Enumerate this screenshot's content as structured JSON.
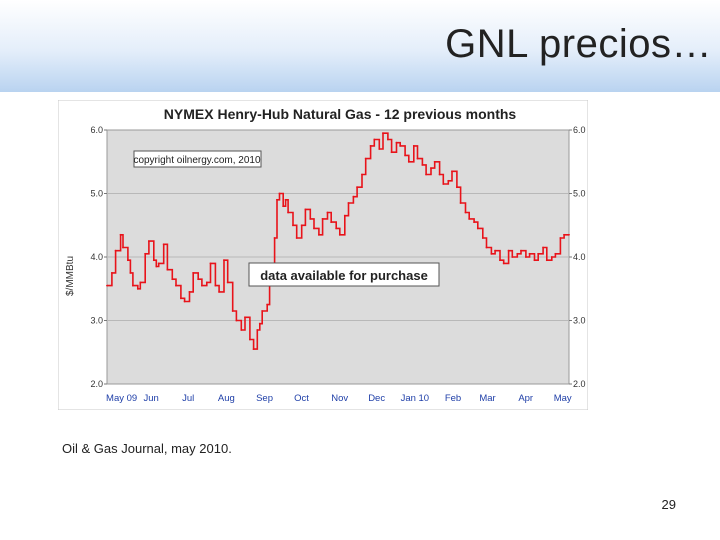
{
  "slide": {
    "title": "GNL  precios…",
    "caption": "Oil & Gas Journal, may 2010.",
    "page_number": "29"
  },
  "chart_data": {
    "type": "line",
    "title": "NYMEX Henry-Hub Natural Gas - 12 previous months",
    "ylabel": "$/MMBtu",
    "xlabel": "",
    "ylim": [
      2.0,
      6.0
    ],
    "yticks": [
      "2.0",
      "3.0",
      "4.0",
      "5.0",
      "6.0"
    ],
    "x_ticks": [
      "May 09",
      "Jun",
      "Jul",
      "Aug",
      "Sep",
      "Oct",
      "Nov",
      "Dec",
      "Jan 10",
      "Feb",
      "Mar",
      "Apr",
      "May"
    ],
    "grid": true,
    "copyright_note": "copyright oilnergy.com, 2010",
    "overlay_note": "data available for purchase",
    "series": [
      {
        "color": "#e8131a",
        "x": [
          "2009-05-01",
          "2009-05-05",
          "2009-05-08",
          "2009-05-12",
          "2009-05-14",
          "2009-05-18",
          "2009-05-20",
          "2009-05-22",
          "2009-05-26",
          "2009-05-28",
          "2009-06-01",
          "2009-06-04",
          "2009-06-08",
          "2009-06-10",
          "2009-06-12",
          "2009-06-16",
          "2009-06-19",
          "2009-06-23",
          "2009-06-26",
          "2009-06-30",
          "2009-07-03",
          "2009-07-07",
          "2009-07-10",
          "2009-07-14",
          "2009-07-17",
          "2009-07-21",
          "2009-07-24",
          "2009-07-28",
          "2009-07-31",
          "2009-08-04",
          "2009-08-07",
          "2009-08-11",
          "2009-08-14",
          "2009-08-18",
          "2009-08-21",
          "2009-08-25",
          "2009-08-28",
          "2009-08-31",
          "2009-09-02",
          "2009-09-04",
          "2009-09-08",
          "2009-09-10",
          "2009-09-14",
          "2009-09-16",
          "2009-09-18",
          "2009-09-21",
          "2009-09-23",
          "2009-09-25",
          "2009-09-29",
          "2009-10-02",
          "2009-10-06",
          "2009-10-09",
          "2009-10-13",
          "2009-10-16",
          "2009-10-20",
          "2009-10-23",
          "2009-10-27",
          "2009-10-30",
          "2009-11-03",
          "2009-11-06",
          "2009-11-10",
          "2009-11-13",
          "2009-11-17",
          "2009-11-20",
          "2009-11-24",
          "2009-11-27",
          "2009-12-01",
          "2009-12-04",
          "2009-12-08",
          "2009-12-11",
          "2009-12-15",
          "2009-12-18",
          "2009-12-22",
          "2009-12-25",
          "2009-12-29",
          "2010-01-01",
          "2010-01-05",
          "2010-01-08",
          "2010-01-12",
          "2010-01-15",
          "2010-01-19",
          "2010-01-22",
          "2010-01-26",
          "2010-01-29",
          "2010-02-02",
          "2010-02-05",
          "2010-02-09",
          "2010-02-12",
          "2010-02-16",
          "2010-02-19",
          "2010-02-23",
          "2010-02-26",
          "2010-03-02",
          "2010-03-05",
          "2010-03-09",
          "2010-03-12",
          "2010-03-16",
          "2010-03-19",
          "2010-03-23",
          "2010-03-26",
          "2010-03-30",
          "2010-04-02",
          "2010-04-06",
          "2010-04-09",
          "2010-04-13",
          "2010-04-16",
          "2010-04-20",
          "2010-04-23",
          "2010-04-27",
          "2010-04-30",
          "2010-05-04",
          "2010-05-07",
          "2010-05-11"
        ],
        "values": [
          3.55,
          3.75,
          4.1,
          4.35,
          4.15,
          3.95,
          3.75,
          3.55,
          3.5,
          3.6,
          4.05,
          4.25,
          3.95,
          3.85,
          3.9,
          4.2,
          3.8,
          3.65,
          3.55,
          3.35,
          3.3,
          3.45,
          3.75,
          3.65,
          3.55,
          3.6,
          3.9,
          3.55,
          3.45,
          3.95,
          3.6,
          3.15,
          3.0,
          2.85,
          3.05,
          2.7,
          2.55,
          2.85,
          2.95,
          3.15,
          3.25,
          3.75,
          4.3,
          4.9,
          5.0,
          4.8,
          4.9,
          4.7,
          4.5,
          4.3,
          4.5,
          4.75,
          4.6,
          4.45,
          4.35,
          4.6,
          4.7,
          4.55,
          4.45,
          4.35,
          4.65,
          4.85,
          4.95,
          5.1,
          5.3,
          5.55,
          5.75,
          5.85,
          5.7,
          5.95,
          5.85,
          5.65,
          5.8,
          5.75,
          5.6,
          5.5,
          5.75,
          5.55,
          5.45,
          5.3,
          5.4,
          5.5,
          5.3,
          5.15,
          5.2,
          5.35,
          5.1,
          4.85,
          4.7,
          4.6,
          4.55,
          4.45,
          4.3,
          4.15,
          4.05,
          4.1,
          3.95,
          3.9,
          4.1,
          4.0,
          4.05,
          4.1,
          4.0,
          4.05,
          3.95,
          4.05,
          4.15,
          3.95,
          4.0,
          4.05,
          4.3,
          4.35,
          4.35
        ]
      }
    ]
  }
}
